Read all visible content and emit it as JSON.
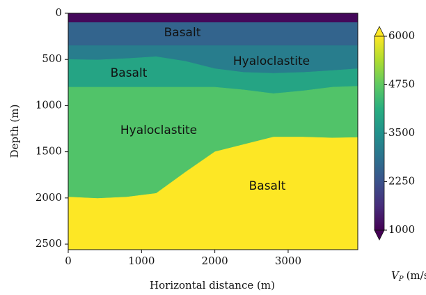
{
  "chart_data": {
    "type": "layers",
    "x_label": "Horizontal distance (m)",
    "y_label": "Depth (m)",
    "xlim": [
      0,
      3950
    ],
    "ylim": [
      2560,
      0
    ],
    "xticks": [
      0,
      1000,
      2000,
      3000
    ],
    "yticks": [
      0,
      500,
      1000,
      1500,
      2000,
      2500
    ],
    "x": [
      0,
      400,
      800,
      1200,
      1600,
      2000,
      2400,
      2800,
      3200,
      3600,
      3950
    ],
    "layers": [
      {
        "value": 1100,
        "top": [
          0,
          0,
          0,
          0,
          0,
          0,
          0,
          0,
          0,
          0,
          0
        ]
      },
      {
        "label": "Basalt",
        "value": 2600,
        "top": [
          100,
          100,
          100,
          100,
          100,
          100,
          100,
          100,
          100,
          100,
          100
        ]
      },
      {
        "label": "Hyaloclastite",
        "value": 3100,
        "top": [
          350,
          350,
          350,
          350,
          350,
          350,
          350,
          350,
          350,
          350,
          350
        ]
      },
      {
        "label": "Basalt",
        "value": 3900,
        "top": [
          500,
          505,
          490,
          470,
          520,
          600,
          640,
          650,
          640,
          620,
          600
        ]
      },
      {
        "label": "Hyaloclastite",
        "value": 4600,
        "top": [
          800,
          800,
          800,
          800,
          800,
          800,
          830,
          870,
          840,
          800,
          790
        ]
      },
      {
        "label": "Basalt",
        "value": 6000,
        "top": [
          1990,
          2005,
          1990,
          1950,
          1720,
          1500,
          1420,
          1340,
          1340,
          1350,
          1345
        ]
      }
    ],
    "colormap": [
      "#440154",
      "#472d7b",
      "#3b528b",
      "#2c728e",
      "#21918c",
      "#28ae80",
      "#5ec962",
      "#addc30",
      "#fde725"
    ],
    "clim": [
      1000,
      6000
    ],
    "cticks": [
      1000,
      2250,
      3500,
      4750,
      6000
    ],
    "colorbar_label": {
      "symbol": "V",
      "subscript": "P",
      "unit": "(m/s)"
    }
  }
}
